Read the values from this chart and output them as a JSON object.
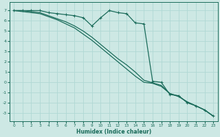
{
  "xlabel": "Humidex (Indice chaleur)",
  "xlim": [
    -0.5,
    23.5
  ],
  "ylim": [
    -3.8,
    7.8
  ],
  "yticks": [
    7,
    6,
    5,
    4,
    3,
    2,
    1,
    0,
    -1,
    -2,
    -3
  ],
  "xticks": [
    0,
    1,
    2,
    3,
    4,
    5,
    6,
    7,
    8,
    9,
    10,
    11,
    12,
    13,
    14,
    15,
    16,
    17,
    18,
    19,
    20,
    21,
    22,
    23
  ],
  "bg_color": "#cde8e4",
  "grid_color": "#b0d8d4",
  "line_color": "#1a6b5a",
  "line1_x": [
    0,
    1,
    2,
    3,
    4,
    5,
    6,
    7,
    8,
    9,
    10,
    11,
    12,
    13,
    14,
    15,
    16,
    17,
    18,
    19,
    20,
    21,
    22,
    23
  ],
  "line1_y": [
    7.0,
    7.0,
    7.0,
    7.0,
    6.8,
    6.7,
    6.6,
    6.5,
    6.3,
    5.5,
    6.3,
    7.0,
    6.8,
    6.7,
    5.8,
    5.7,
    0.1,
    0.0,
    -1.2,
    -1.3,
    -2.0,
    -2.3,
    -2.7,
    -3.3
  ],
  "line2_x": [
    0,
    1,
    2,
    3,
    4,
    5,
    6,
    7,
    8,
    9,
    10,
    11,
    12,
    13,
    14,
    15,
    16,
    17,
    18,
    19,
    20,
    21,
    22,
    23
  ],
  "line2_y": [
    7.0,
    6.9,
    6.8,
    6.7,
    6.4,
    6.1,
    5.7,
    5.3,
    4.7,
    4.1,
    3.4,
    2.7,
    2.0,
    1.3,
    0.6,
    0.0,
    -0.1,
    -0.4,
    -1.1,
    -1.4,
    -1.9,
    -2.3,
    -2.7,
    -3.3
  ],
  "line3_x": [
    0,
    1,
    2,
    3,
    4,
    5,
    6,
    7,
    8,
    9,
    10,
    11,
    12,
    13,
    14,
    15,
    16,
    17,
    18,
    19,
    20,
    21,
    22,
    23
  ],
  "line3_y": [
    7.0,
    7.0,
    6.9,
    6.8,
    6.5,
    6.2,
    5.9,
    5.5,
    5.0,
    4.4,
    3.7,
    3.0,
    2.3,
    1.7,
    1.0,
    0.2,
    -0.05,
    -0.3,
    -1.1,
    -1.35,
    -1.95,
    -2.3,
    -2.7,
    -3.3
  ]
}
